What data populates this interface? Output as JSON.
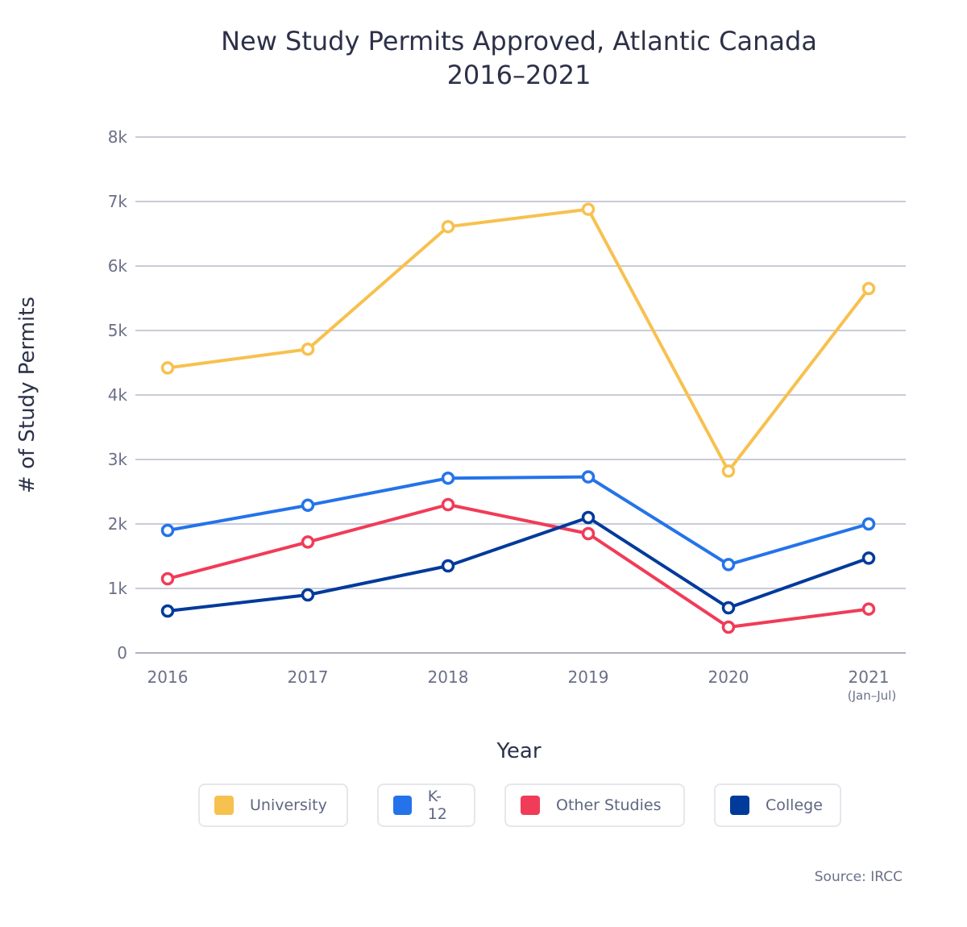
{
  "chart_data": {
    "type": "line",
    "title": "New Study Permits Approved, Atlantic Canada",
    "subtitle": "2016–2021",
    "xlabel": "Year",
    "ylabel": "# of Study Permits",
    "categories": [
      "2016",
      "2017",
      "2018",
      "2019",
      "2020",
      "2021"
    ],
    "category_notes": [
      "",
      "",
      "",
      "",
      "",
      "(Jan–Jul)"
    ],
    "yticks": [
      "0",
      "1k",
      "2k",
      "3k",
      "4k",
      "5k",
      "6k",
      "7k",
      "8k"
    ],
    "ylim": [
      0,
      8000
    ],
    "grid": true,
    "legend_placement": "bottom",
    "series": [
      {
        "name": "University",
        "color": "#f7c14f",
        "values": [
          4420,
          4710,
          6610,
          6880,
          2820,
          5650
        ]
      },
      {
        "name": "K-12",
        "color": "#2473ea",
        "values": [
          1900,
          2290,
          2710,
          2730,
          1370,
          2000
        ]
      },
      {
        "name": "Other Studies",
        "color": "#f03c58",
        "values": [
          1150,
          1720,
          2300,
          1850,
          400,
          680
        ]
      },
      {
        "name": "College",
        "color": "#003a9b",
        "values": [
          650,
          900,
          1350,
          2100,
          700,
          1470
        ]
      }
    ],
    "source": "Source: IRCC"
  }
}
